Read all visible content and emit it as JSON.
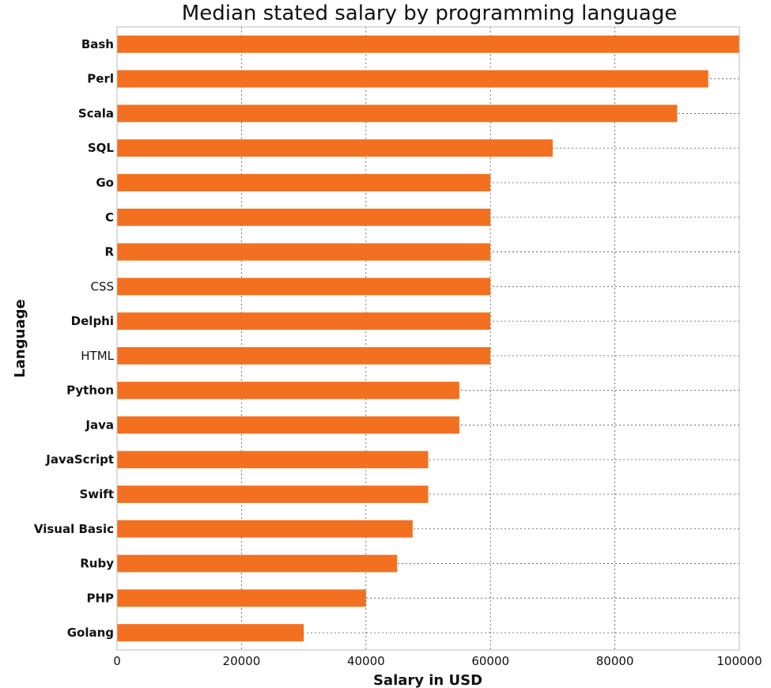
{
  "chart_data": {
    "type": "bar",
    "orientation": "horizontal",
    "title": "Median stated salary by programming language",
    "xlabel": "Salary in USD",
    "ylabel": "Language",
    "xlim": [
      0,
      100000
    ],
    "xticks": [
      "0",
      "20000",
      "40000",
      "60000",
      "80000",
      "100000"
    ],
    "grid": true,
    "bar_color": "#f37021",
    "categories": [
      "Bash",
      "Perl",
      "Scala",
      "SQL",
      "Go",
      "C",
      "R",
      "CSS",
      "Delphi",
      "HTML",
      "Python",
      "Java",
      "JavaScript",
      "Swift",
      "Visual Basic",
      "Ruby",
      "PHP",
      "Golang"
    ],
    "light_labels": [
      "CSS",
      "HTML"
    ],
    "values": [
      100000,
      95000,
      90000,
      70000,
      60000,
      60000,
      60000,
      60000,
      60000,
      60000,
      55000,
      55000,
      50000,
      50000,
      47500,
      45000,
      40000,
      30000
    ]
  }
}
